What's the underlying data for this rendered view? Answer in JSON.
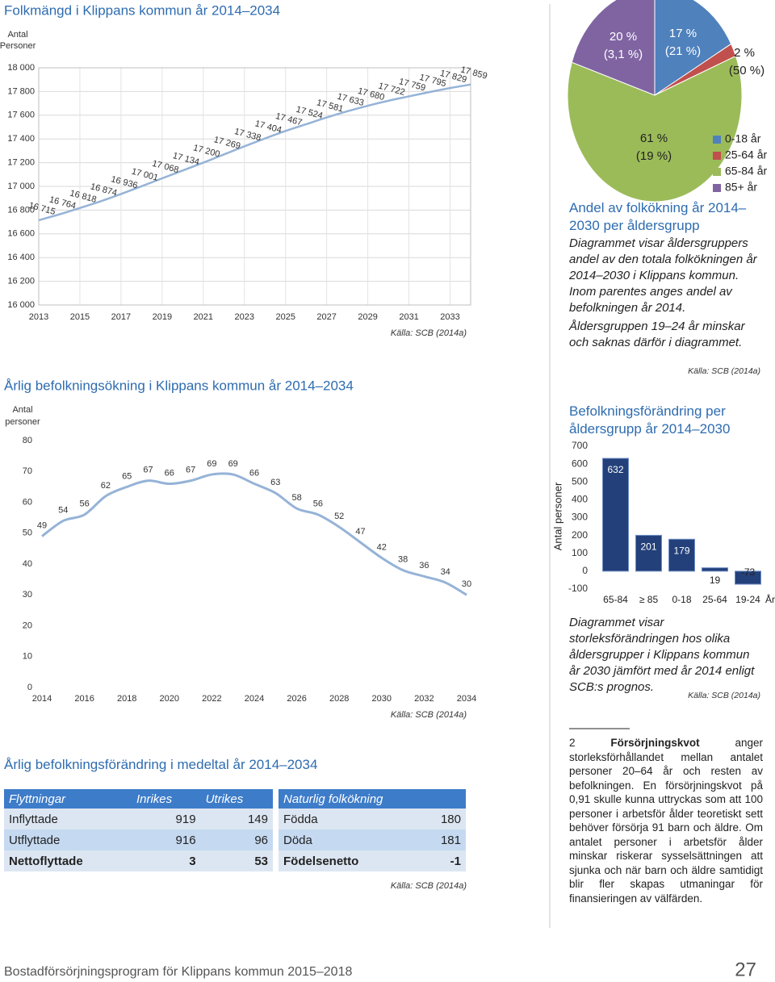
{
  "chart_data": [
    {
      "type": "line",
      "title": "Folkmängd i Klippans kommun år 2014–2034",
      "ylabel": [
        "Antal",
        "Personer"
      ],
      "x": [
        2013,
        2014,
        2015,
        2016,
        2017,
        2018,
        2019,
        2020,
        2021,
        2022,
        2023,
        2024,
        2025,
        2026,
        2027,
        2028,
        2029,
        2030,
        2031,
        2032,
        2033,
        2034
      ],
      "series": [
        {
          "color": "#95b3d7",
          "values": [
            16715,
            16764,
            16818,
            16874,
            16936,
            17001,
            17068,
            17134,
            17200,
            17269,
            17338,
            17404,
            17467,
            17524,
            17581,
            17633,
            17680,
            17722,
            17759,
            17795,
            17829,
            17859
          ],
          "value_labels": [
            "16 715",
            "16 764",
            "16 818",
            "16 874",
            "16 936",
            "17 001",
            "17 068",
            "17 134",
            "17 200",
            "17 269",
            "17 338",
            "17 404",
            "17 467",
            "17 524",
            "17 581",
            "17 633",
            "17 680",
            "17 722",
            "17 759",
            "17 795",
            "17 829",
            "17 859"
          ]
        }
      ],
      "xlim": [
        2013,
        2034
      ],
      "xticks": [
        2013,
        2015,
        2017,
        2019,
        2021,
        2023,
        2025,
        2027,
        2029,
        2031,
        2033
      ],
      "ylim": [
        16000,
        18000
      ],
      "yticks": [
        {
          "value": 16000,
          "label": "16 000"
        },
        {
          "value": 16200,
          "label": "16 200"
        },
        {
          "value": 16400,
          "label": "16 400"
        },
        {
          "value": 16600,
          "label": "16 600"
        },
        {
          "value": 16800,
          "label": "16 800"
        },
        {
          "value": 17000,
          "label": "17 000"
        },
        {
          "value": 17200,
          "label": "17 200"
        },
        {
          "value": 17400,
          "label": "17 400"
        },
        {
          "value": 17600,
          "label": "17 600"
        },
        {
          "value": 17800,
          "label": "17 800"
        },
        {
          "value": 18000,
          "label": "18 000"
        }
      ],
      "grid": true,
      "source": "Källa: SCB (2014a)"
    },
    {
      "type": "line",
      "title": "Årlig befolkningsökning i Klippans kommun år 2014–2034",
      "ylabel": [
        "Antal",
        "personer"
      ],
      "x": [
        2014,
        2015,
        2016,
        2017,
        2018,
        2019,
        2020,
        2021,
        2022,
        2023,
        2024,
        2025,
        2026,
        2027,
        2028,
        2029,
        2030,
        2031,
        2032,
        2033,
        2034
      ],
      "series": [
        {
          "color": "#95b3d7",
          "values": [
            49,
            54,
            56,
            62,
            65,
            67,
            66,
            67,
            69,
            69,
            66,
            63,
            58,
            56,
            52,
            47,
            42,
            38,
            36,
            34,
            30
          ]
        }
      ],
      "xlim": [
        2014,
        2034
      ],
      "xticks": [
        2014,
        2016,
        2018,
        2020,
        2022,
        2024,
        2026,
        2028,
        2030,
        2032,
        2034
      ],
      "ylim": [
        0,
        80
      ],
      "yticks": [
        0,
        10,
        20,
        30,
        40,
        50,
        60,
        70,
        80
      ],
      "grid": false,
      "source": "Källa: SCB (2014a)"
    },
    {
      "type": "pie",
      "title": "Andel av folkökning år 2014–2030 per åldersgrupp",
      "categories": [
        "0-18 år",
        "25-64 år",
        "65-84 år",
        "85+ år"
      ],
      "values": [
        17,
        2,
        61,
        20
      ],
      "value_labels": [
        "17 %",
        "2 %",
        "61 %",
        "20 %"
      ],
      "population_share_labels": [
        "(21 %)",
        "(50 %)",
        "(19 %)",
        "(3,1 %)"
      ],
      "colors": [
        "#4f81bd",
        "#c0504d",
        "#9bbb59",
        "#8064a2"
      ],
      "description": "Diagrammet visar åldersgruppers andel av den totala folkökningen år 2014–2030 i Klippans kommun. Inom parentes anges andel av befolkningen år 2014.",
      "note": "Åldersgruppen 19–24 år minskar och saknas därför i diagrammet.",
      "source": "Källa: SCB (2014a)"
    },
    {
      "type": "bar",
      "title": "Befolkningsförändring per åldersgrupp år 2014–2030",
      "ylabel": "Antal personer",
      "xlabel": "År",
      "categories": [
        "65-84",
        "≥ 85",
        "0-18",
        "25-64",
        "19-24"
      ],
      "values": [
        632,
        201,
        179,
        19,
        -73
      ],
      "color": "#23407a",
      "ylim": [
        -100,
        700
      ],
      "yticks": [
        -100,
        0,
        100,
        200,
        300,
        400,
        500,
        600,
        700
      ],
      "description": "Diagrammet visar storleksförändringen hos olika åldersgrupper i Klippans kommun år 2030 jämfört med år 2014 enligt SCB:s prognos.",
      "source": "Källa: SCB (2014a)"
    }
  ],
  "table": {
    "title": "Årlig befolkningsförändring i medeltal år 2014–2034",
    "left": {
      "header": [
        "Flyttningar",
        "Inrikes",
        "Utrikes"
      ],
      "rows": [
        [
          "Inflyttade",
          "919",
          "149"
        ],
        [
          "Utflyttade",
          "916",
          "96"
        ],
        [
          "Nettoflyttade",
          "3",
          "53"
        ]
      ]
    },
    "right": {
      "header": [
        "Naturlig folkökning"
      ],
      "rows": [
        [
          "Födda",
          "180"
        ],
        [
          "Döda",
          "181"
        ],
        [
          "Födelsenetto",
          "-1"
        ]
      ]
    },
    "source": "Källa: SCB (2014a)"
  },
  "footnote": {
    "number": "2",
    "term": "Försörjningskvot",
    "text": "anger storleksförhållandet mellan antalet personer 20–64 år och resten av befolkningen. En försörjningskvot på 0,91 skulle kunna uttryckas som att 100 personer i arbetsför ålder teoretiskt sett behöver försörja 91 barn och äldre. Om antalet personer i arbetsför ålder minskar riskerar sysselsättningen att sjunka och när barn och äldre samtidigt blir fler skapas utmaningar för finansieringen av välfärden."
  },
  "footer": {
    "text": "Bostadförsörjningsprogram för Klippans kommun 2015–2018",
    "page": "27"
  }
}
